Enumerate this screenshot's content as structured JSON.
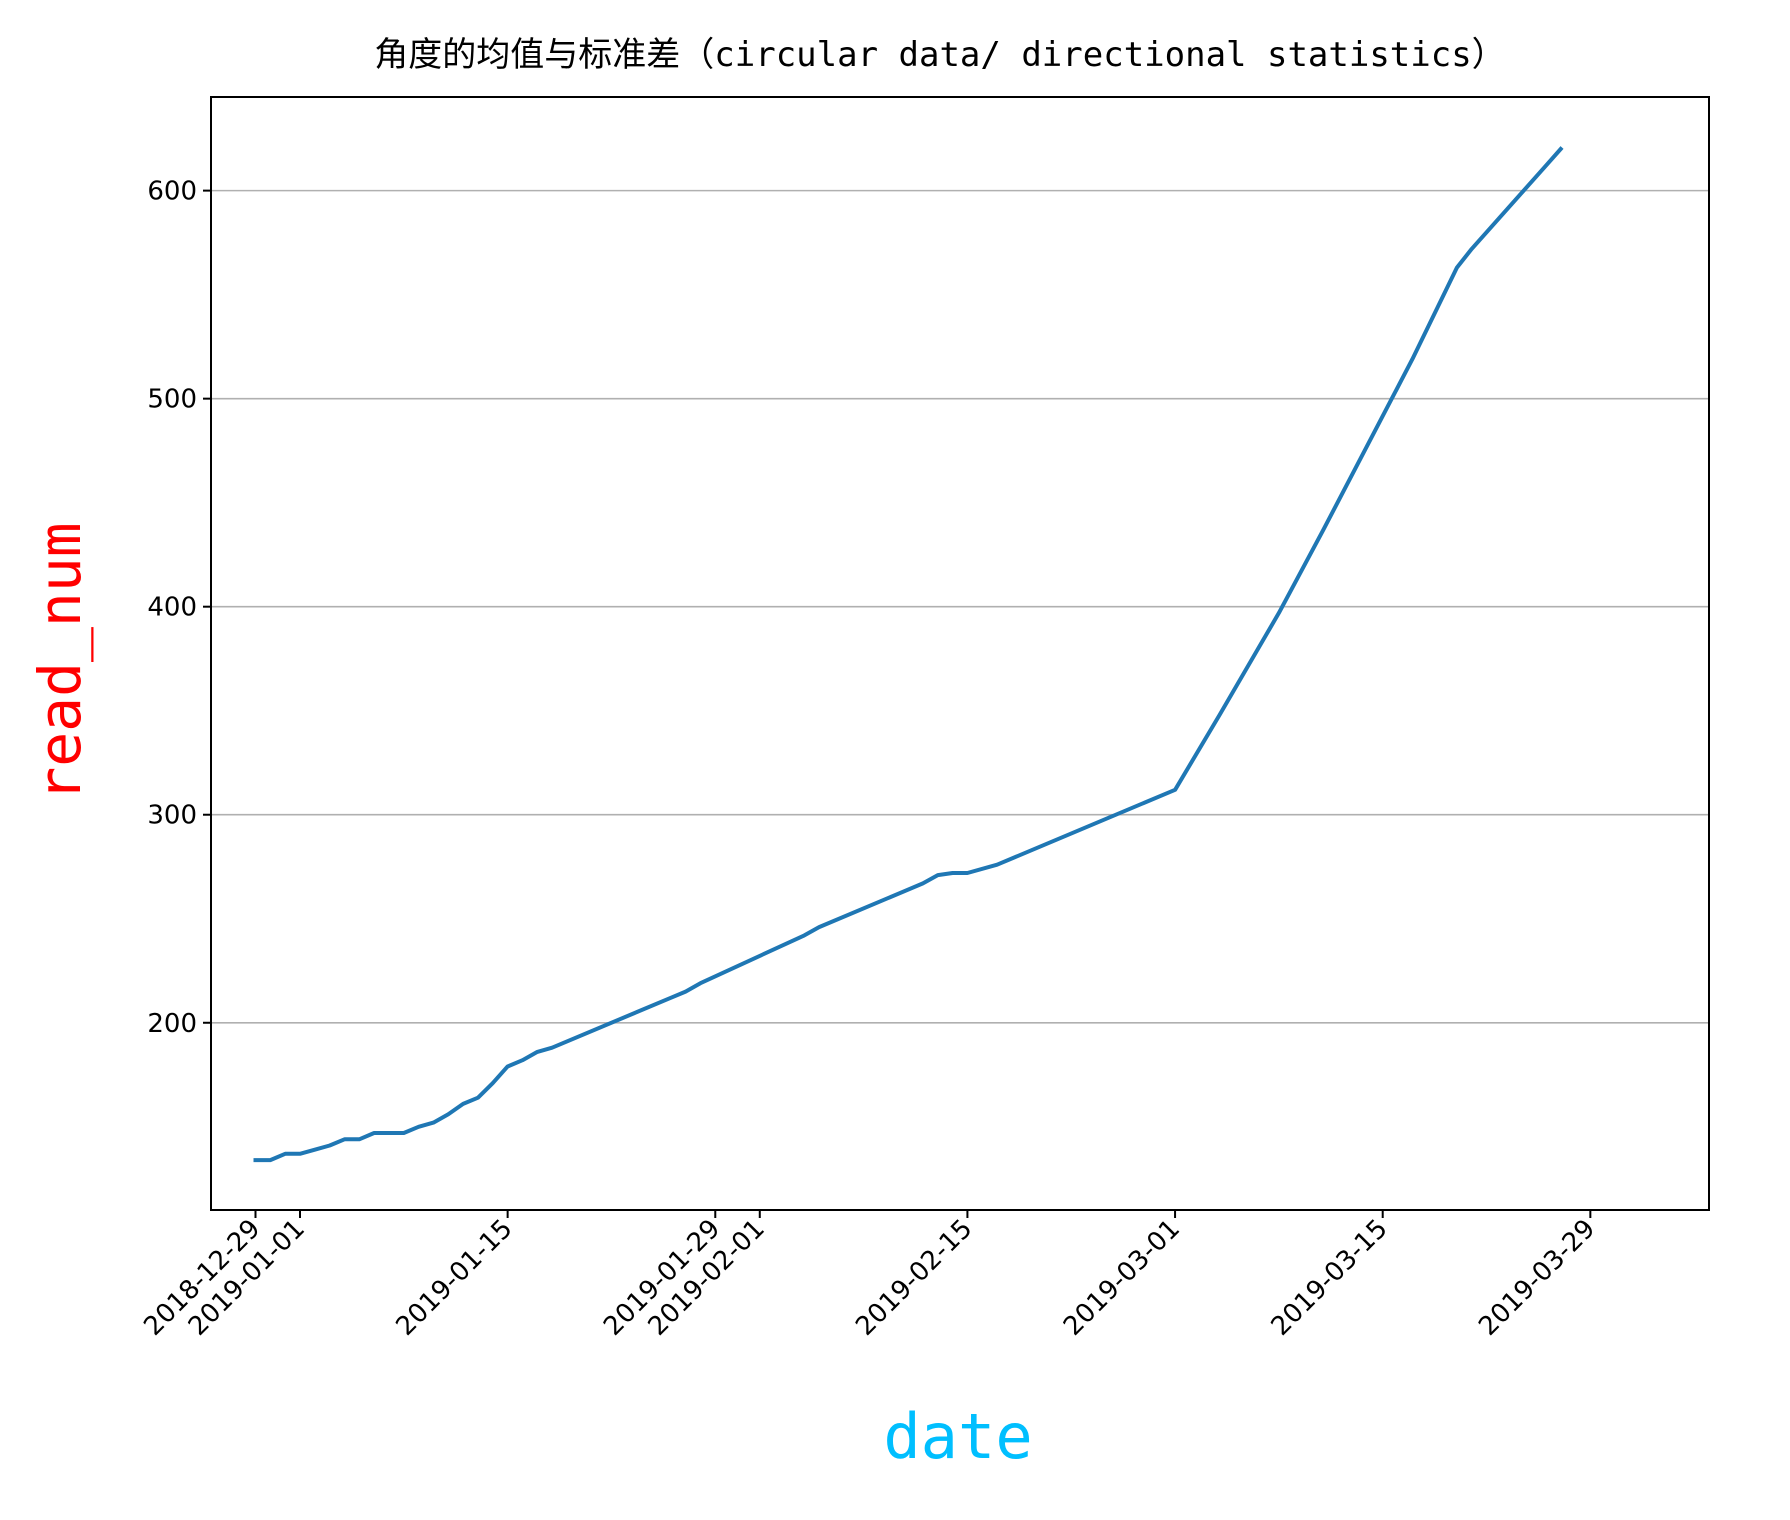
{
  "chart_data": {
    "type": "line",
    "title": "角度的均值与标准差（circular data/ directional statistics）",
    "xlabel": "date",
    "ylabel": "read_num",
    "xlabel_color": "#00bfff",
    "ylabel_color": "#ff0000",
    "line_color": "#1f77b4",
    "grid": "y-axis only",
    "xlim": [
      "2018-12-26",
      "2019-04-06"
    ],
    "ylim": [
      110,
      645
    ],
    "x_ticks": [
      "2018-12-29",
      "2019-01-01",
      "2019-01-15",
      "2019-01-29",
      "2019-02-01",
      "2019-02-15",
      "2019-03-01",
      "2019-03-15",
      "2019-03-29"
    ],
    "y_ticks": [
      200,
      300,
      400,
      500,
      600
    ],
    "series": [
      {
        "points": [
          [
            "2018-12-29",
            134
          ],
          [
            "2018-12-30",
            134
          ],
          [
            "2018-12-31",
            137
          ],
          [
            "2019-01-01",
            137
          ],
          [
            "2019-01-02",
            139
          ],
          [
            "2019-01-03",
            141
          ],
          [
            "2019-01-04",
            144
          ],
          [
            "2019-01-05",
            144
          ],
          [
            "2019-01-06",
            147
          ],
          [
            "2019-01-07",
            147
          ],
          [
            "2019-01-08",
            147
          ],
          [
            "2019-01-09",
            150
          ],
          [
            "2019-01-10",
            152
          ],
          [
            "2019-01-11",
            156
          ],
          [
            "2019-01-12",
            161
          ],
          [
            "2019-01-13",
            164
          ],
          [
            "2019-01-14",
            171
          ],
          [
            "2019-01-15",
            179
          ],
          [
            "2019-01-16",
            182
          ],
          [
            "2019-01-17",
            186
          ],
          [
            "2019-01-18",
            188
          ],
          [
            "2019-01-26",
            212
          ],
          [
            "2019-01-27",
            215
          ],
          [
            "2019-01-28",
            219
          ],
          [
            "2019-02-04",
            242
          ],
          [
            "2019-02-05",
            246
          ],
          [
            "2019-02-12",
            267
          ],
          [
            "2019-02-13",
            271
          ],
          [
            "2019-02-14",
            272
          ],
          [
            "2019-02-15",
            272
          ],
          [
            "2019-02-17",
            276
          ],
          [
            "2019-03-01",
            312
          ],
          [
            "2019-03-04",
            348
          ],
          [
            "2019-03-08",
            397
          ],
          [
            "2019-03-11",
            437
          ],
          [
            "2019-03-17",
            519
          ],
          [
            "2019-03-20",
            563
          ],
          [
            "2019-03-21",
            572
          ],
          [
            "2019-03-26",
            612
          ],
          [
            "2019-03-27",
            620
          ]
        ]
      }
    ]
  }
}
